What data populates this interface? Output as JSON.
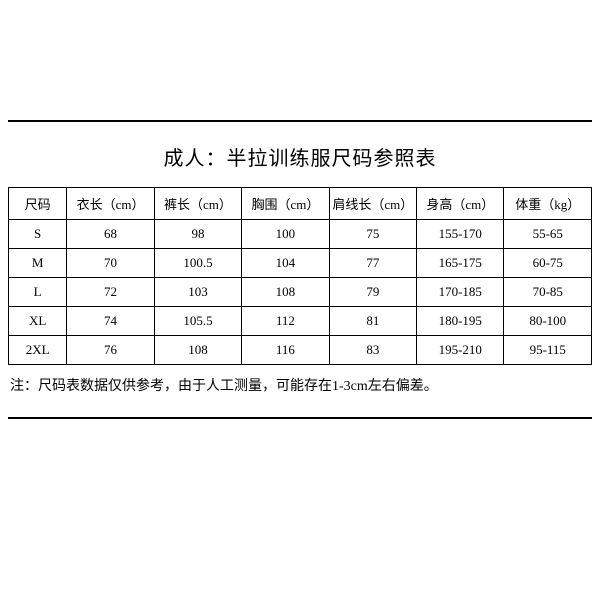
{
  "title": "成人：半拉训练服尺码参照表",
  "table": {
    "columns": [
      "尺码",
      "衣长（cm）",
      "裤长（cm）",
      "胸围（cm）",
      "肩线长（cm）",
      "身高（cm）",
      "体重（kg）"
    ],
    "rows": [
      [
        "S",
        "68",
        "98",
        "100",
        "75",
        "155-170",
        "55-65"
      ],
      [
        "M",
        "70",
        "100.5",
        "104",
        "77",
        "165-175",
        "60-75"
      ],
      [
        "L",
        "72",
        "103",
        "108",
        "79",
        "170-185",
        "70-85"
      ],
      [
        "XL",
        "74",
        "105.5",
        "112",
        "81",
        "180-195",
        "80-100"
      ],
      [
        "2XL",
        "76",
        "108",
        "116",
        "83",
        "195-210",
        "95-115"
      ]
    ],
    "column_widths": [
      "10%",
      "15%",
      "15%",
      "15%",
      "15%",
      "15%",
      "15%"
    ]
  },
  "note": "注：尺码表数据仅供参考，由于人工测量，可能存在1-3cm左右偏差。",
  "styling": {
    "background_color": "#ffffff",
    "text_color": "#000000",
    "border_color": "#000000",
    "title_fontsize": 20,
    "cell_fontsize": 13,
    "note_fontsize": 14,
    "font_family": "SimSun"
  }
}
